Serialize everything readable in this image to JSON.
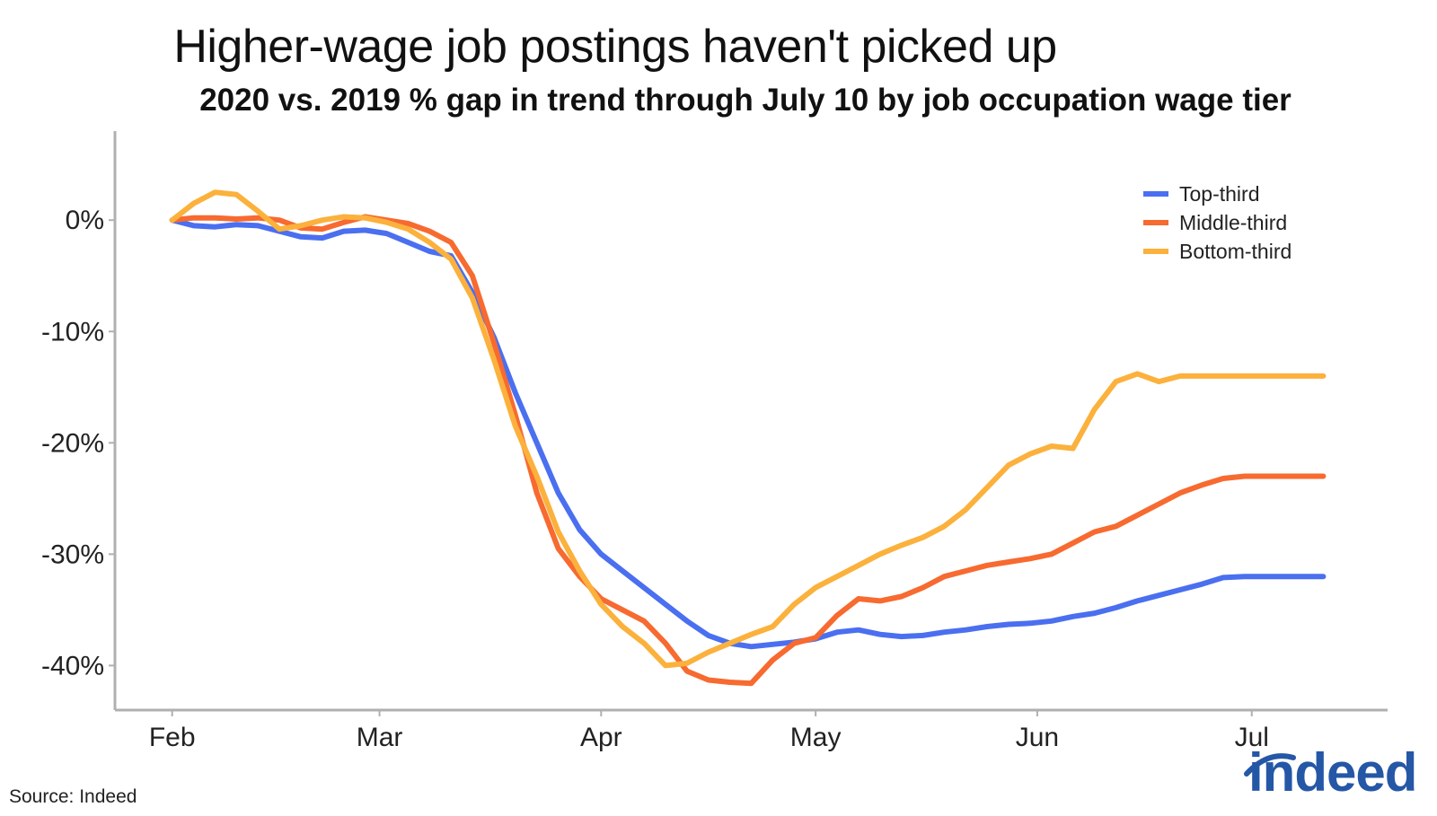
{
  "chart_data": {
    "type": "line",
    "title": "Higher-wage job postings haven't picked up",
    "subtitle": "2020 vs. 2019 % gap in trend through July 10 by job occupation wage tier",
    "xlabel": "",
    "ylabel": "",
    "x_ticks": [
      "Feb",
      "Mar",
      "Apr",
      "May",
      "Jun",
      "Jul"
    ],
    "x_tick_days": [
      0,
      29,
      60,
      90,
      121,
      151
    ],
    "xlim": [
      -8,
      170
    ],
    "y_ticks": [
      0,
      -10,
      -20,
      -30,
      -40
    ],
    "y_tick_labels": [
      "0%",
      "-10%",
      "-20%",
      "-30%",
      "-40%"
    ],
    "ylim": [
      -44,
      8
    ],
    "legend": "top-right",
    "grid": false,
    "series": [
      {
        "name": "Top-third",
        "color": "#4a6ff0",
        "x": [
          0,
          3,
          6,
          9,
          12,
          15,
          18,
          21,
          24,
          27,
          30,
          33,
          36,
          39,
          42,
          45,
          48,
          51,
          54,
          57,
          60,
          63,
          66,
          69,
          72,
          75,
          78,
          81,
          84,
          87,
          90,
          93,
          96,
          99,
          102,
          105,
          108,
          111,
          114,
          117,
          120,
          123,
          126,
          129,
          132,
          135,
          138,
          141,
          144,
          147,
          150,
          153,
          156,
          159,
          161
        ],
        "values": [
          0,
          -0.5,
          -0.6,
          -0.4,
          -0.5,
          -1.0,
          -1.5,
          -1.6,
          -1.0,
          -0.9,
          -1.2,
          -2.0,
          -2.8,
          -3.2,
          -6.5,
          -10.5,
          -15.5,
          -20.0,
          -24.5,
          -27.8,
          -30.0,
          -31.5,
          -33.0,
          -34.5,
          -36.0,
          -37.3,
          -38.0,
          -38.3,
          -38.1,
          -37.9,
          -37.6,
          -37.0,
          -36.8,
          -37.2,
          -37.4,
          -37.3,
          -37.0,
          -36.8,
          -36.5,
          -36.3,
          -36.2,
          -36.0,
          -35.6,
          -35.3,
          -34.8,
          -34.2,
          -33.7,
          -33.2,
          -32.7,
          -32.1,
          -32.0,
          -32.0,
          -32.0,
          -32.0,
          -32.0
        ]
      },
      {
        "name": "Middle-third",
        "color": "#f76a30",
        "x": [
          0,
          3,
          6,
          9,
          12,
          15,
          18,
          21,
          24,
          27,
          30,
          33,
          36,
          39,
          42,
          45,
          48,
          51,
          54,
          57,
          60,
          63,
          66,
          69,
          72,
          75,
          78,
          81,
          84,
          87,
          90,
          93,
          96,
          99,
          102,
          105,
          108,
          111,
          114,
          117,
          120,
          123,
          126,
          129,
          132,
          135,
          138,
          141,
          144,
          147,
          150,
          153,
          156,
          159,
          161
        ],
        "values": [
          0,
          0.2,
          0.2,
          0.1,
          0.2,
          0,
          -0.7,
          -0.8,
          -0.2,
          0.3,
          0,
          -0.3,
          -1.0,
          -2.0,
          -5.0,
          -11.0,
          -17.5,
          -24.5,
          -29.5,
          -32.0,
          -34.0,
          -35.0,
          -36.0,
          -38.0,
          -40.5,
          -41.3,
          -41.5,
          -41.6,
          -39.5,
          -38.0,
          -37.5,
          -35.5,
          -34.0,
          -34.2,
          -33.8,
          -33.0,
          -32.0,
          -31.5,
          -31.0,
          -30.7,
          -30.4,
          -30.0,
          -29.0,
          -28.0,
          -27.5,
          -26.5,
          -25.5,
          -24.5,
          -23.8,
          -23.2,
          -23.0,
          -23.0,
          -23.0,
          -23.0,
          -23.0
        ]
      },
      {
        "name": "Bottom-third",
        "color": "#fbb13c",
        "x": [
          0,
          3,
          6,
          9,
          12,
          15,
          18,
          21,
          24,
          27,
          30,
          33,
          36,
          39,
          42,
          45,
          48,
          51,
          54,
          57,
          60,
          63,
          66,
          69,
          72,
          75,
          78,
          81,
          84,
          87,
          90,
          93,
          96,
          99,
          102,
          105,
          108,
          111,
          114,
          117,
          120,
          123,
          126,
          129,
          132,
          135,
          138,
          141,
          144,
          147,
          150,
          153,
          156,
          159,
          161
        ],
        "values": [
          0,
          1.5,
          2.5,
          2.3,
          0.8,
          -0.8,
          -0.5,
          0,
          0.3,
          0.2,
          -0.2,
          -0.8,
          -2.0,
          -3.5,
          -7.0,
          -12.5,
          -18.5,
          -23.0,
          -28.0,
          -31.5,
          -34.5,
          -36.5,
          -38.0,
          -40.0,
          -39.8,
          -38.8,
          -38.0,
          -37.2,
          -36.5,
          -34.5,
          -33.0,
          -32.0,
          -31.0,
          -30.0,
          -29.2,
          -28.5,
          -27.5,
          -26.0,
          -24.0,
          -22.0,
          -21.0,
          -20.3,
          -20.5,
          -17.0,
          -14.5,
          -13.8,
          -14.5,
          -14.0,
          -14.0,
          -14.0,
          -14.0,
          -14.0,
          -14.0,
          -14.0,
          -14.0
        ]
      }
    ]
  },
  "source": "Source: Indeed",
  "logo_text": "indeed"
}
